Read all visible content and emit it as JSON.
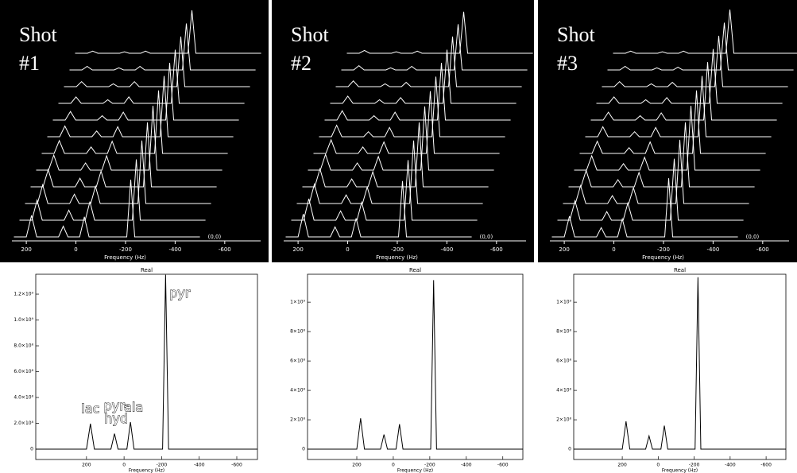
{
  "chart_data": [
    {
      "type": "waterfall",
      "label_lines": [
        "Shot",
        "#1"
      ],
      "xlabel": "Frequency (Hz)",
      "corner_label": "(0,0)",
      "x": [
        250,
        200,
        179,
        158,
        70,
        51,
        32,
        -15,
        -34,
        -53,
        -205,
        -221,
        -237,
        -500
      ],
      "xlim": [
        258,
        -655
      ],
      "xticks": [
        200,
        0,
        -200,
        -400,
        -600
      ],
      "ylim": [
        0,
        100
      ],
      "color": "#ffffff",
      "background": "#000000",
      "series": [
        {
          "values": [
            0,
            0,
            30,
            0,
            0,
            15,
            0,
            0,
            28,
            0,
            0,
            80,
            0,
            0
          ]
        },
        {
          "values": [
            0,
            0,
            28,
            0,
            0,
            14,
            0,
            0,
            26,
            0,
            0,
            85,
            0,
            0
          ]
        },
        {
          "values": [
            0,
            0,
            26,
            0,
            0,
            13,
            0,
            0,
            24,
            0,
            0,
            88,
            0,
            0
          ]
        },
        {
          "values": [
            0,
            0,
            24,
            0,
            0,
            12,
            0,
            0,
            22,
            0,
            0,
            90,
            0,
            0
          ]
        },
        {
          "values": [
            0,
            0,
            21,
            0,
            0,
            10,
            0,
            0,
            20,
            0,
            0,
            90,
            0,
            0
          ]
        },
        {
          "values": [
            0,
            0,
            18,
            0,
            0,
            9,
            0,
            0,
            17,
            0,
            0,
            88,
            0,
            0
          ]
        },
        {
          "values": [
            0,
            0,
            15,
            0,
            0,
            8,
            0,
            0,
            14,
            0,
            0,
            85,
            0,
            0
          ]
        },
        {
          "values": [
            0,
            0,
            12,
            0,
            0,
            6,
            0,
            0,
            11,
            0,
            0,
            80,
            0,
            0
          ]
        },
        {
          "values": [
            0,
            0,
            9,
            0,
            0,
            5,
            0,
            0,
            9,
            0,
            0,
            75,
            0,
            0
          ]
        },
        {
          "values": [
            0,
            0,
            7,
            0,
            0,
            4,
            0,
            0,
            7,
            0,
            0,
            70,
            0,
            0
          ]
        },
        {
          "values": [
            0,
            0,
            5,
            0,
            0,
            3,
            0,
            0,
            5,
            0,
            0,
            65,
            0,
            0
          ]
        },
        {
          "values": [
            0,
            0,
            3,
            0,
            0,
            2,
            0,
            0,
            3,
            0,
            0,
            60,
            0,
            0
          ]
        }
      ]
    },
    {
      "type": "waterfall",
      "label_lines": [
        "Shot",
        "#2"
      ],
      "xlabel": "Frequency (Hz)",
      "corner_label": "(0,0)",
      "x": [
        250,
        200,
        179,
        158,
        70,
        51,
        32,
        -15,
        -34,
        -53,
        -205,
        -221,
        -237,
        -500
      ],
      "xlim": [
        258,
        -655
      ],
      "xticks": [
        200,
        0,
        -200,
        -400,
        -600
      ],
      "ylim": [
        0,
        100
      ],
      "color": "#ffffff",
      "background": "#000000",
      "series": [
        {
          "values": [
            0,
            0,
            32,
            0,
            0,
            14,
            0,
            0,
            26,
            0,
            0,
            78,
            0,
            0
          ]
        },
        {
          "values": [
            0,
            0,
            30,
            0,
            0,
            13,
            0,
            0,
            25,
            0,
            0,
            84,
            0,
            0
          ]
        },
        {
          "values": [
            0,
            0,
            27,
            0,
            0,
            12,
            0,
            0,
            23,
            0,
            0,
            88,
            0,
            0
          ]
        },
        {
          "values": [
            0,
            0,
            25,
            0,
            0,
            11,
            0,
            0,
            21,
            0,
            0,
            90,
            0,
            0
          ]
        },
        {
          "values": [
            0,
            0,
            22,
            0,
            0,
            10,
            0,
            0,
            19,
            0,
            0,
            89,
            0,
            0
          ]
        },
        {
          "values": [
            0,
            0,
            19,
            0,
            0,
            9,
            0,
            0,
            16,
            0,
            0,
            87,
            0,
            0
          ]
        },
        {
          "values": [
            0,
            0,
            16,
            0,
            0,
            7,
            0,
            0,
            13,
            0,
            0,
            84,
            0,
            0
          ]
        },
        {
          "values": [
            0,
            0,
            13,
            0,
            0,
            6,
            0,
            0,
            11,
            0,
            0,
            80,
            0,
            0
          ]
        },
        {
          "values": [
            0,
            0,
            10,
            0,
            0,
            5,
            0,
            0,
            8,
            0,
            0,
            75,
            0,
            0
          ]
        },
        {
          "values": [
            0,
            0,
            8,
            0,
            0,
            4,
            0,
            0,
            6,
            0,
            0,
            70,
            0,
            0
          ]
        },
        {
          "values": [
            0,
            0,
            6,
            0,
            0,
            3,
            0,
            0,
            5,
            0,
            0,
            64,
            0,
            0
          ]
        },
        {
          "values": [
            0,
            0,
            4,
            0,
            0,
            2,
            0,
            0,
            3,
            0,
            0,
            58,
            0,
            0
          ]
        }
      ]
    },
    {
      "type": "waterfall",
      "label_lines": [
        "Shot",
        "#3"
      ],
      "xlabel": "Frequency (Hz)",
      "corner_label": "(0,0)",
      "x": [
        250,
        200,
        179,
        158,
        70,
        51,
        32,
        -15,
        -34,
        -53,
        -205,
        -221,
        -237,
        -500
      ],
      "xlim": [
        258,
        -655
      ],
      "xticks": [
        200,
        0,
        -200,
        -400,
        -600
      ],
      "ylim": [
        0,
        100
      ],
      "color": "#ffffff",
      "background": "#000000",
      "series": [
        {
          "values": [
            0,
            0,
            29,
            0,
            0,
            13,
            0,
            0,
            25,
            0,
            0,
            82,
            0,
            0
          ]
        },
        {
          "values": [
            0,
            0,
            27,
            0,
            0,
            12,
            0,
            0,
            24,
            0,
            0,
            86,
            0,
            0
          ]
        },
        {
          "values": [
            0,
            0,
            25,
            0,
            0,
            11,
            0,
            0,
            22,
            0,
            0,
            89,
            0,
            0
          ]
        },
        {
          "values": [
            0,
            0,
            23,
            0,
            0,
            10,
            0,
            0,
            20,
            0,
            0,
            90,
            0,
            0
          ]
        },
        {
          "values": [
            0,
            0,
            20,
            0,
            0,
            9,
            0,
            0,
            18,
            0,
            0,
            90,
            0,
            0
          ]
        },
        {
          "values": [
            0,
            0,
            17,
            0,
            0,
            8,
            0,
            0,
            16,
            0,
            0,
            88,
            0,
            0
          ]
        },
        {
          "values": [
            0,
            0,
            14,
            0,
            0,
            7,
            0,
            0,
            13,
            0,
            0,
            85,
            0,
            0
          ]
        },
        {
          "values": [
            0,
            0,
            11,
            0,
            0,
            6,
            0,
            0,
            10,
            0,
            0,
            81,
            0,
            0
          ]
        },
        {
          "values": [
            0,
            0,
            9,
            0,
            0,
            5,
            0,
            0,
            8,
            0,
            0,
            76,
            0,
            0
          ]
        },
        {
          "values": [
            0,
            0,
            7,
            0,
            0,
            4,
            0,
            0,
            6,
            0,
            0,
            71,
            0,
            0
          ]
        },
        {
          "values": [
            0,
            0,
            5,
            0,
            0,
            3,
            0,
            0,
            4,
            0,
            0,
            66,
            0,
            0
          ]
        },
        {
          "values": [
            0,
            0,
            3,
            0,
            0,
            2,
            0,
            0,
            3,
            0,
            0,
            61,
            0,
            0
          ]
        }
      ]
    },
    {
      "type": "line",
      "title": "Real",
      "xlabel": "Frequency (Hz)",
      "x": [
        470,
        200,
        179,
        158,
        70,
        51,
        32,
        -15,
        -34,
        -53,
        -205,
        -221,
        -237,
        -710
      ],
      "xlim": [
        470,
        -710
      ],
      "xticks": [
        200,
        0,
        -200,
        -400,
        -600
      ],
      "ylim": [
        -80000000,
        1354000000
      ],
      "yticks": [
        0,
        {
          "value": 200000000,
          "label": "2.0×10⁸"
        },
        {
          "value": 400000000,
          "label": "4.0×10⁸"
        },
        {
          "value": 600000000,
          "label": "6.0×10⁸"
        },
        {
          "value": 800000000,
          "label": "8.0×10⁸"
        },
        {
          "value": 1000000000,
          "label": "1.0×10⁹"
        },
        {
          "value": 1200000000,
          "label": "1.2×10⁹"
        }
      ],
      "color": "#000000",
      "background": "#ffffff",
      "series": [
        {
          "values": [
            0,
            0,
            197000000,
            0,
            0,
            120000000,
            0,
            0,
            210000000,
            0,
            0,
            1350000000,
            0,
            0
          ]
        }
      ],
      "annotations": [
        "lac",
        "pyr-",
        "hyd",
        "ala",
        "pyr"
      ]
    },
    {
      "type": "line",
      "title": "Real",
      "xlabel": "Frequency (Hz)",
      "x": [
        470,
        200,
        179,
        158,
        70,
        51,
        32,
        -15,
        -34,
        -53,
        -205,
        -221,
        -237,
        -710
      ],
      "xlim": [
        470,
        -710
      ],
      "xticks": [
        200,
        0,
        -200,
        -400,
        -600
      ],
      "ylim": [
        -70000000,
        1190000000
      ],
      "yticks": [
        0,
        {
          "value": 200000000,
          "label": "2×10⁸"
        },
        {
          "value": 400000000,
          "label": "4×10⁸"
        },
        {
          "value": 600000000,
          "label": "6×10⁸"
        },
        {
          "value": 800000000,
          "label": "8×10⁸"
        },
        {
          "value": 1000000000,
          "label": "1×10⁹"
        }
      ],
      "color": "#000000",
      "background": "#ffffff",
      "series": [
        {
          "values": [
            0,
            0,
            210000000,
            0,
            0,
            100000000,
            0,
            0,
            170000000,
            0,
            0,
            1150000000,
            0,
            0
          ]
        }
      ]
    },
    {
      "type": "line",
      "title": "Real",
      "xlabel": "Frequency (Hz)",
      "x": [
        470,
        200,
        179,
        158,
        70,
        51,
        32,
        -15,
        -34,
        -53,
        -205,
        -221,
        -237,
        -710
      ],
      "xlim": [
        470,
        -710
      ],
      "xticks": [
        200,
        0,
        -200,
        -400,
        -600
      ],
      "ylim": [
        -70000000,
        1190000000
      ],
      "yticks": [
        0,
        {
          "value": 200000000,
          "label": "2×10⁸"
        },
        {
          "value": 400000000,
          "label": "4×10⁸"
        },
        {
          "value": 600000000,
          "label": "6×10⁸"
        },
        {
          "value": 800000000,
          "label": "8×10⁸"
        },
        {
          "value": 1000000000,
          "label": "1×10⁹"
        }
      ],
      "color": "#000000",
      "background": "#ffffff",
      "series": [
        {
          "values": [
            0,
            0,
            190000000,
            0,
            0,
            90000000,
            0,
            0,
            160000000,
            0,
            0,
            1170000000,
            0,
            0
          ]
        }
      ]
    }
  ]
}
